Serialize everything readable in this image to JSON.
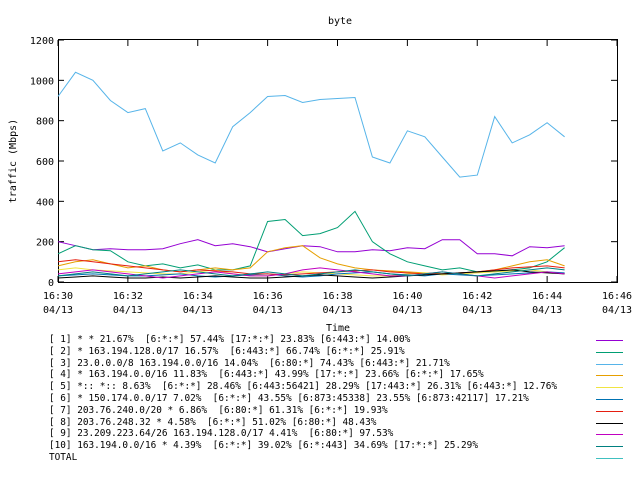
{
  "chart_data": {
    "type": "line",
    "title": "byte",
    "xlabel": "Time",
    "ylabel": "traffic (Mbps)",
    "ylim": [
      0,
      1200
    ],
    "yticks": [
      "0",
      "200",
      "400",
      "600",
      "800",
      "1000",
      "1200"
    ],
    "xticks": [
      {
        "time": "16:30",
        "date": "04/13"
      },
      {
        "time": "16:32",
        "date": "04/13"
      },
      {
        "time": "16:34",
        "date": "04/13"
      },
      {
        "time": "16:36",
        "date": "04/13"
      },
      {
        "time": "16:38",
        "date": "04/13"
      },
      {
        "time": "16:40",
        "date": "04/13"
      },
      {
        "time": "16:42",
        "date": "04/13"
      },
      {
        "time": "16:44",
        "date": "04/13"
      },
      {
        "time": "16:46",
        "date": "04/13"
      }
    ],
    "xlim": [
      "16:30",
      "16:46"
    ],
    "x": [
      "16:30",
      "16:30:30",
      "16:31",
      "16:31:30",
      "16:32",
      "16:32:30",
      "16:33",
      "16:33:30",
      "16:34",
      "16:34:30",
      "16:35",
      "16:35:30",
      "16:36",
      "16:36:30",
      "16:37",
      "16:37:30",
      "16:38",
      "16:38:30",
      "16:39",
      "16:39:30",
      "16:40",
      "16:40:30",
      "16:41",
      "16:41:30",
      "16:42",
      "16:42:30",
      "16:43",
      "16:43:30",
      "16:44",
      "16:44:30"
    ],
    "grid": false,
    "series": [
      {
        "name": "[ 1] * * 21.67%  [6:*:*] 57.44% [17:*:*] 23.83% [6:443:*] 14.00%",
        "color": "#9500d3",
        "values": [
          200,
          180,
          160,
          165,
          160,
          160,
          165,
          190,
          210,
          180,
          190,
          175,
          150,
          165,
          180,
          175,
          150,
          150,
          160,
          155,
          170,
          165,
          210,
          210,
          140,
          140,
          130,
          175,
          170,
          180
        ]
      },
      {
        "name": "[ 2] * 163.194.128.0/17 16.57%  [6:443:*] 66.74% [6:*:*] 25.91%",
        "color": "#009e73",
        "values": [
          140,
          180,
          160,
          155,
          100,
          80,
          90,
          70,
          85,
          60,
          60,
          80,
          300,
          310,
          230,
          240,
          270,
          350,
          200,
          140,
          100,
          80,
          60,
          70,
          50,
          50,
          60,
          70,
          100,
          170
        ]
      },
      {
        "name": "[ 3] 23.0.0.0/8 163.194.0.0/16 14.04%  [6:80:*] 74.43% [6:443:*] 21.71%",
        "color": "#56b4e9",
        "values": [
          920,
          1040,
          1000,
          900,
          840,
          860,
          650,
          690,
          630,
          590,
          770,
          840,
          920,
          925,
          890,
          905,
          910,
          915,
          620,
          590,
          750,
          720,
          620,
          520,
          530,
          820,
          690,
          730,
          790,
          720
        ]
      },
      {
        "name": "[ 4] * 163.194.0.0/16 11.83%  [6:443:*] 43.99% [17:*:*] 23.66% [6:*:*] 17.65%",
        "color": "#e69f00",
        "values": [
          80,
          100,
          110,
          90,
          70,
          80,
          60,
          50,
          60,
          70,
          60,
          70,
          150,
          170,
          180,
          120,
          90,
          70,
          60,
          55,
          50,
          45,
          40,
          45,
          50,
          60,
          80,
          100,
          110,
          80
        ]
      },
      {
        "name": "[ 5] *:: *:: 8.63%  [6:*:*] 28.46% [6:443:56421] 28.29% [17:443:*] 26.31% [6:443:*] 12.76%",
        "color": "#f0e442",
        "values": [
          60,
          70,
          60,
          55,
          50,
          45,
          40,
          40,
          50,
          60,
          40,
          30,
          30,
          40,
          50,
          45,
          40,
          35,
          30,
          30,
          40,
          45,
          35,
          40,
          45,
          50,
          55,
          60,
          50,
          40
        ]
      },
      {
        "name": "[ 6] * 150.174.0.0/17 7.02%  [6:*:*] 43.55% [6:873:45338] 23.55% [6:873:42117] 17.21%",
        "color": "#0072b2",
        "values": [
          30,
          35,
          40,
          35,
          30,
          30,
          35,
          40,
          30,
          25,
          30,
          35,
          40,
          30,
          25,
          30,
          40,
          45,
          50,
          40,
          35,
          30,
          40,
          35,
          30,
          35,
          40,
          45,
          50,
          45
        ]
      },
      {
        "name": "[ 7] 203.76.240.0/20 * 6.86%  [6:80:*] 61.31% [6:*:*] 19.93%",
        "color": "#e51e10",
        "values": [
          100,
          110,
          100,
          90,
          80,
          70,
          60,
          50,
          60,
          55,
          50,
          40,
          40,
          35,
          40,
          45,
          50,
          55,
          60,
          50,
          45,
          40,
          40,
          45,
          50,
          60,
          70,
          75,
          80,
          70
        ]
      },
      {
        "name": "[ 8] 203.76.248.32 * 4.58%  [6:*:*] 51.02% [6:80:*] 48.43%",
        "color": "#000000",
        "values": [
          20,
          25,
          30,
          25,
          20,
          20,
          25,
          20,
          25,
          30,
          25,
          20,
          20,
          25,
          30,
          35,
          30,
          25,
          20,
          25,
          30,
          35,
          40,
          45,
          50,
          55,
          60,
          50,
          45,
          40
        ]
      },
      {
        "name": "[ 9] 23.209.223.64/26 163.194.128.0/17 4.41%  [6:80:*] 97.53%",
        "color": "#c000c0",
        "values": [
          40,
          50,
          60,
          50,
          40,
          30,
          20,
          30,
          40,
          50,
          40,
          30,
          30,
          40,
          60,
          70,
          60,
          50,
          40,
          30,
          30,
          40,
          50,
          40,
          30,
          20,
          30,
          40,
          50,
          40
        ]
      },
      {
        "name": "[10] 163.194.0.0/16 * 4.39%  [6:*:*] 39.02% [6:*:443] 34.69% [17:*:*] 25.29%",
        "color": "#008080",
        "values": [
          30,
          40,
          50,
          40,
          30,
          40,
          50,
          60,
          50,
          40,
          30,
          40,
          50,
          40,
          30,
          40,
          50,
          60,
          50,
          40,
          30,
          40,
          50,
          40,
          30,
          40,
          50,
          60,
          70,
          60
        ]
      }
    ],
    "total_label": "TOTAL",
    "total_color": "#40c0c0"
  }
}
